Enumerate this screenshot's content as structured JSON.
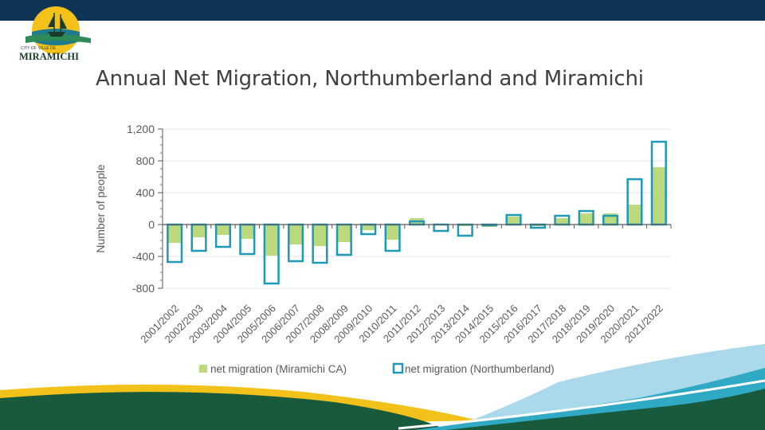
{
  "header": {
    "bar_color": "#0e3557"
  },
  "logo": {
    "line1_left": "CITY OF",
    "line1_right": "VILLE DE",
    "name": "MIRAMICHI"
  },
  "slide": {
    "title": "Annual Net Migration, Northumberland and Miramichi"
  },
  "chart_data": {
    "type": "bar",
    "ylabel": "Number of people",
    "ylim": [
      -800,
      1200
    ],
    "yticks": [
      {
        "value": 1200,
        "label": "1,200"
      },
      {
        "value": 800,
        "label": "800"
      },
      {
        "value": 400,
        "label": "400"
      },
      {
        "value": 0,
        "label": "0"
      },
      {
        "value": -400,
        "label": "-400"
      },
      {
        "value": -800,
        "label": "-800"
      }
    ],
    "grid": true,
    "legend_position": "bottom",
    "categories": [
      "2001/2002",
      "2002/2003",
      "2003/2004",
      "2004/2005",
      "2005/2006",
      "2006/2007",
      "2007/2008",
      "2008/2009",
      "2009/2010",
      "2010/2011",
      "2011/2012",
      "2012/2013",
      "2013/2014",
      "2014/2015",
      "2015/2016",
      "2016/2017",
      "2017/2018",
      "2018/2019",
      "2019/2020",
      "2020/2021",
      "2021/2022"
    ],
    "series": [
      {
        "name": "net migration (Miramichi CA)",
        "style": "filled",
        "color": "#bcd97d",
        "values": [
          -230,
          -160,
          -130,
          -180,
          -390,
          -250,
          -270,
          -220,
          -70,
          -190,
          80,
          -10,
          -20,
          -30,
          100,
          -20,
          80,
          140,
          140,
          250,
          720
        ]
      },
      {
        "name": "net migration (Northumberland)",
        "style": "outline",
        "color": "#1f9ab6",
        "values": [
          -470,
          -330,
          -280,
          -370,
          -740,
          -460,
          -480,
          -380,
          -120,
          -330,
          40,
          -80,
          -140,
          -10,
          120,
          -40,
          110,
          170,
          110,
          570,
          1040
        ]
      }
    ]
  },
  "theme": {
    "navy": "#0e3557",
    "green_dark": "#1a5a3c",
    "teal": "#2fa9c4",
    "light_blue": "#a9d9ea",
    "yellow": "#f3c21a"
  }
}
